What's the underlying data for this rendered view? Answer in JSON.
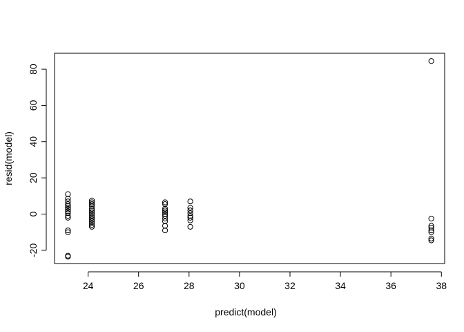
{
  "chart_data": {
    "type": "scatter",
    "title": "",
    "xlabel": "predict(model)",
    "ylabel": "resid(model)",
    "xlim": [
      22.67,
      38.13
    ],
    "ylim": [
      -27.3,
      88.8
    ],
    "x_ticks": [
      24,
      26,
      28,
      30,
      32,
      34,
      36,
      38
    ],
    "y_ticks": [
      -20,
      0,
      20,
      40,
      60,
      80
    ],
    "grid": false,
    "legend": "none",
    "marker": "open-circle",
    "points": [
      {
        "x": 23.2,
        "y": 11
      },
      {
        "x": 23.2,
        "y": 8.5
      },
      {
        "x": 23.2,
        "y": 7
      },
      {
        "x": 23.2,
        "y": 5.5
      },
      {
        "x": 23.2,
        "y": 4.5
      },
      {
        "x": 23.2,
        "y": 3.5
      },
      {
        "x": 23.2,
        "y": 2.5
      },
      {
        "x": 23.2,
        "y": 1.5
      },
      {
        "x": 23.2,
        "y": 0.5
      },
      {
        "x": 23.2,
        "y": -1
      },
      {
        "x": 23.2,
        "y": -2
      },
      {
        "x": 23.2,
        "y": -9
      },
      {
        "x": 23.2,
        "y": -10
      },
      {
        "x": 23.2,
        "y": -23
      },
      {
        "x": 23.2,
        "y": -23.5
      },
      {
        "x": 24.15,
        "y": 7.5
      },
      {
        "x": 24.15,
        "y": 6.5
      },
      {
        "x": 24.15,
        "y": 5.5
      },
      {
        "x": 24.15,
        "y": 4.5
      },
      {
        "x": 24.15,
        "y": 3
      },
      {
        "x": 24.15,
        "y": 2
      },
      {
        "x": 24.15,
        "y": 1
      },
      {
        "x": 24.15,
        "y": 0
      },
      {
        "x": 24.15,
        "y": -1
      },
      {
        "x": 24.15,
        "y": -2
      },
      {
        "x": 24.15,
        "y": -3
      },
      {
        "x": 24.15,
        "y": -4
      },
      {
        "x": 24.15,
        "y": -5
      },
      {
        "x": 24.15,
        "y": -6
      },
      {
        "x": 24.15,
        "y": -7
      },
      {
        "x": 27.05,
        "y": 6.5
      },
      {
        "x": 27.05,
        "y": 5.5
      },
      {
        "x": 27.05,
        "y": 3
      },
      {
        "x": 27.05,
        "y": 2
      },
      {
        "x": 27.05,
        "y": 1
      },
      {
        "x": 27.05,
        "y": 0
      },
      {
        "x": 27.05,
        "y": -1
      },
      {
        "x": 27.05,
        "y": -2.5
      },
      {
        "x": 27.05,
        "y": -4
      },
      {
        "x": 27.05,
        "y": -6.5
      },
      {
        "x": 27.05,
        "y": -9
      },
      {
        "x": 28.05,
        "y": 7
      },
      {
        "x": 28.05,
        "y": 3.5
      },
      {
        "x": 28.05,
        "y": 2
      },
      {
        "x": 28.05,
        "y": 0.5
      },
      {
        "x": 28.05,
        "y": -1
      },
      {
        "x": 28.05,
        "y": -2
      },
      {
        "x": 28.05,
        "y": -3.5
      },
      {
        "x": 28.05,
        "y": -7
      },
      {
        "x": 37.6,
        "y": 84.5
      },
      {
        "x": 37.6,
        "y": -2.5
      },
      {
        "x": 37.6,
        "y": -6.5
      },
      {
        "x": 37.6,
        "y": -7.5
      },
      {
        "x": 37.6,
        "y": -9
      },
      {
        "x": 37.6,
        "y": -10
      },
      {
        "x": 37.6,
        "y": -13.5
      },
      {
        "x": 37.6,
        "y": -14.5
      }
    ]
  }
}
